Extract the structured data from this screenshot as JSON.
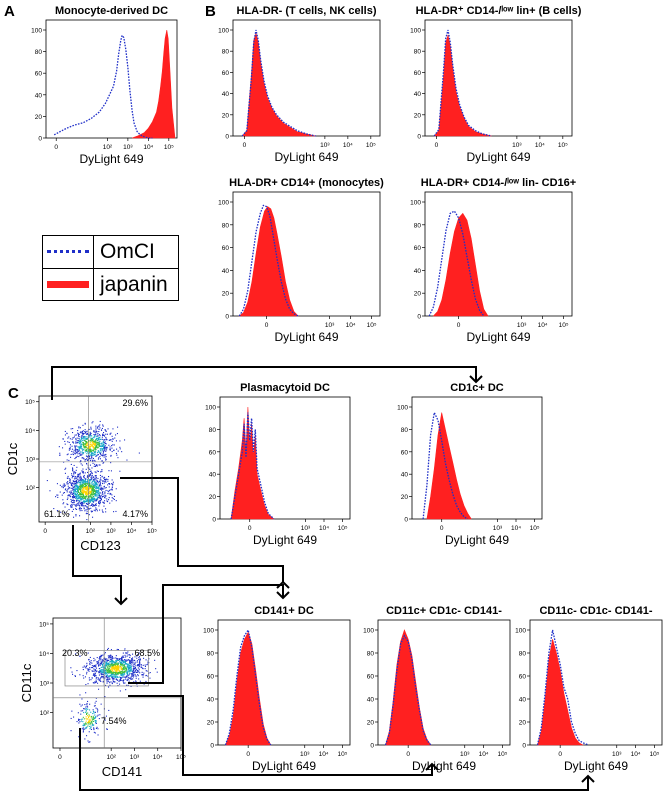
{
  "colors": {
    "omcl": "#1f2fc8",
    "japanin": "#ff2020",
    "arrow": "#000000"
  },
  "panel_labels": {
    "a": "A",
    "b": "B",
    "c": "C"
  },
  "legend": {
    "omcl": "OmCI",
    "japanin": "japanin"
  },
  "chart_data": [
    {
      "type": "area",
      "title": "Monocyte-derived DC",
      "xlabel": "DyLight 649",
      "xticks": [
        "0",
        "10²",
        "10³",
        "10⁴",
        "10⁵"
      ],
      "yticks": [
        "0",
        "20",
        "40",
        "60",
        "80",
        "100"
      ],
      "ylim": [
        0,
        100
      ],
      "series": [
        {
          "name": "OmCI",
          "x": [
            -0.6,
            -0.3,
            0,
            0.4,
            0.8,
            1.2,
            1.6,
            1.9,
            2.1,
            2.3,
            2.45,
            2.55,
            2.65,
            2.72,
            2.8,
            2.9,
            3.0,
            3.1,
            3.2,
            3.3,
            3.45,
            3.6,
            3.8,
            4.0,
            4.2
          ],
          "values": [
            3,
            6,
            9,
            12,
            14,
            18,
            24,
            32,
            40,
            48,
            62,
            78,
            90,
            95,
            93,
            82,
            65,
            44,
            26,
            14,
            6,
            3,
            1,
            0,
            0
          ]
        },
        {
          "name": "japanin",
          "x": [
            3.2,
            3.5,
            3.8,
            4.0,
            4.2,
            4.4,
            4.5,
            4.6,
            4.68,
            4.75,
            4.82,
            4.9,
            4.97,
            5.05,
            5.15,
            5.3
          ],
          "values": [
            0,
            2,
            5,
            9,
            15,
            24,
            34,
            48,
            62,
            78,
            92,
            100,
            92,
            65,
            28,
            0
          ]
        }
      ]
    },
    {
      "type": "area",
      "title": "HLA-DR-  (T cells, NK cells)",
      "xlabel": "DyLight 649",
      "xticks": [
        "0",
        "10³",
        "10⁴",
        "10⁵"
      ],
      "yticks": [
        "0",
        "20",
        "40",
        "60",
        "80",
        "100"
      ],
      "ylim": [
        0,
        100
      ],
      "series": [
        {
          "name": "OmCI",
          "x": [
            -0.6,
            -0.4,
            -0.2,
            -0.1,
            0,
            0.1,
            0.2,
            0.35,
            0.5,
            0.7,
            0.9,
            1.2,
            1.5,
            1.8,
            2.2,
            2.6
          ],
          "values": [
            0,
            5,
            55,
            88,
            100,
            90,
            72,
            52,
            38,
            27,
            20,
            13,
            9,
            5,
            2,
            0
          ]
        },
        {
          "name": "japanin",
          "x": [
            -0.6,
            -0.4,
            -0.2,
            -0.1,
            0,
            0.1,
            0.2,
            0.35,
            0.5,
            0.7,
            0.9,
            1.2,
            1.5,
            1.8,
            2.2,
            2.6
          ],
          "values": [
            0,
            5,
            58,
            90,
            97,
            88,
            70,
            50,
            36,
            26,
            19,
            12,
            8,
            4,
            2,
            0
          ]
        }
      ]
    },
    {
      "type": "area",
      "title": "HLA-DR⁺ CD14-/ˡᵒʷ lin+ (B cells)",
      "xlabel": "DyLight 649",
      "xticks": [
        "0",
        "10³",
        "10⁴",
        "10⁵"
      ],
      "yticks": [
        "0",
        "20",
        "40",
        "60",
        "80",
        "100"
      ],
      "ylim": [
        0,
        100
      ],
      "series": [
        {
          "name": "OmCI",
          "x": [
            -0.6,
            -0.4,
            -0.2,
            -0.1,
            0,
            0.1,
            0.2,
            0.35,
            0.5,
            0.7,
            0.9,
            1.2,
            1.5,
            1.9
          ],
          "values": [
            0,
            6,
            60,
            92,
            100,
            88,
            68,
            45,
            30,
            18,
            10,
            5,
            2,
            0
          ]
        },
        {
          "name": "japanin",
          "x": [
            -0.6,
            -0.4,
            -0.2,
            -0.1,
            0,
            0.1,
            0.2,
            0.35,
            0.5,
            0.7,
            0.9,
            1.2,
            1.5,
            1.9
          ],
          "values": [
            0,
            5,
            55,
            88,
            95,
            85,
            65,
            42,
            28,
            17,
            9,
            4,
            2,
            0
          ]
        }
      ]
    },
    {
      "type": "area",
      "title": "HLA-DR+ CD14+ (monocytes)",
      "xlabel": "DyLight 649",
      "xticks": [
        "0",
        "10³",
        "10⁴",
        "10⁵"
      ],
      "yticks": [
        "0",
        "20",
        "40",
        "60",
        "80",
        "100"
      ],
      "ylim": [
        0,
        100
      ],
      "series": [
        {
          "name": "OmCI",
          "x": [
            -1.3,
            -1.1,
            -0.9,
            -0.7,
            -0.5,
            -0.3,
            -0.15,
            0,
            0.15,
            0.3,
            0.5,
            0.7,
            0.9,
            1.1,
            1.3,
            1.5
          ],
          "values": [
            0,
            6,
            22,
            48,
            74,
            90,
            97,
            96,
            88,
            72,
            50,
            30,
            15,
            6,
            2,
            0
          ]
        },
        {
          "name": "japanin",
          "x": [
            -1.3,
            -1.1,
            -0.9,
            -0.7,
            -0.5,
            -0.3,
            -0.1,
            0.05,
            0.2,
            0.35,
            0.5,
            0.7,
            0.9,
            1.1,
            1.3,
            1.5
          ],
          "values": [
            0,
            3,
            12,
            30,
            55,
            78,
            92,
            96,
            94,
            86,
            72,
            52,
            30,
            14,
            4,
            0
          ]
        }
      ]
    },
    {
      "type": "area",
      "title": "HLA-DR+ CD14-/ˡᵒʷ lin- CD16+",
      "xlabel": "DyLight 649",
      "xticks": [
        "0",
        "10³",
        "10⁴",
        "10⁵"
      ],
      "yticks": [
        "0",
        "20",
        "40",
        "60",
        "80",
        "100"
      ],
      "ylim": [
        0,
        100
      ],
      "series": [
        {
          "name": "OmCI",
          "x": [
            -1.4,
            -1.2,
            -1.0,
            -0.8,
            -0.6,
            -0.4,
            -0.2,
            0,
            0.2,
            0.4,
            0.6,
            0.8,
            1.0,
            1.2
          ],
          "values": [
            0,
            8,
            25,
            50,
            75,
            90,
            92,
            86,
            72,
            52,
            32,
            15,
            5,
            0
          ]
        },
        {
          "name": "japanin",
          "x": [
            -1.2,
            -1.0,
            -0.8,
            -0.6,
            -0.4,
            -0.2,
            0,
            0.2,
            0.4,
            0.6,
            0.8,
            1.0,
            1.2,
            1.4
          ],
          "values": [
            0,
            4,
            14,
            32,
            55,
            74,
            86,
            90,
            84,
            68,
            45,
            22,
            6,
            0
          ]
        }
      ]
    },
    {
      "type": "scatter",
      "xlabel": "CD123",
      "ylabel": "CD1c",
      "xticks": [
        "0",
        "10²",
        "10³",
        "10⁴",
        "10⁵"
      ],
      "yticks": [
        "10²",
        "10³",
        "10⁴",
        "10⁵"
      ],
      "quadrants": [
        "29.6%",
        "61.1%",
        "4.17%"
      ],
      "populations": [
        {
          "name": "",
          "x": 1.8,
          "y": 1.9,
          "spread_x": 0.55,
          "spread_y": 0.35
        },
        {
          "name": "",
          "x": 2.0,
          "y": 3.5,
          "spread_x": 0.55,
          "spread_y": 0.3
        }
      ]
    },
    {
      "type": "area",
      "title": "Plasmacytoid DC",
      "xlabel": "DyLight 649",
      "xticks": [
        "0",
        "10³",
        "10⁴",
        "10⁵"
      ],
      "yticks": [
        "0",
        "20",
        "40",
        "60",
        "80",
        "100"
      ],
      "ylim": [
        0,
        100
      ],
      "series": [
        {
          "name": "OmCI",
          "x": [
            -1.0,
            -0.8,
            -0.6,
            -0.4,
            -0.3,
            -0.2,
            -0.1,
            0,
            0.1,
            0.2,
            0.3,
            0.4,
            0.6,
            0.8,
            1.0,
            1.3
          ],
          "values": [
            0,
            20,
            40,
            60,
            85,
            55,
            95,
            70,
            90,
            60,
            80,
            45,
            30,
            15,
            5,
            0
          ]
        },
        {
          "name": "japanin",
          "x": [
            -1.0,
            -0.8,
            -0.6,
            -0.4,
            -0.3,
            -0.2,
            -0.1,
            0,
            0.1,
            0.2,
            0.3,
            0.4,
            0.6,
            0.8,
            1.0,
            1.3
          ],
          "values": [
            0,
            25,
            45,
            70,
            90,
            60,
            100,
            65,
            85,
            55,
            75,
            40,
            25,
            12,
            4,
            0
          ]
        }
      ]
    },
    {
      "type": "area",
      "title": "CD1c+ DC",
      "xlabel": "DyLight 649",
      "xticks": [
        "0",
        "10³",
        "10⁴",
        "10⁵"
      ],
      "yticks": [
        "0",
        "20",
        "40",
        "60",
        "80",
        "100"
      ],
      "ylim": [
        0,
        100
      ],
      "series": [
        {
          "name": "OmCI",
          "x": [
            -1.0,
            -0.8,
            -0.6,
            -0.4,
            -0.2,
            0,
            0.2,
            0.4,
            0.6,
            0.8,
            1.0,
            1.2,
            1.4
          ],
          "values": [
            0,
            30,
            75,
            95,
            88,
            70,
            50,
            35,
            22,
            12,
            6,
            2,
            0
          ]
        },
        {
          "name": "japanin",
          "x": [
            -0.8,
            -0.6,
            -0.4,
            -0.2,
            0,
            0.2,
            0.4,
            0.6,
            0.8,
            1.0,
            1.2,
            1.4,
            1.6
          ],
          "values": [
            0,
            20,
            45,
            75,
            95,
            80,
            65,
            50,
            35,
            22,
            12,
            5,
            0
          ]
        }
      ]
    },
    {
      "type": "scatter",
      "xlabel": "CD141",
      "ylabel": "CD11c",
      "xticks": [
        "0",
        "10²",
        "10³",
        "10⁴",
        "10⁵"
      ],
      "yticks": [
        "10²",
        "10³",
        "10⁴",
        "10⁵"
      ],
      "quadrants": [
        "20.3%",
        "68.5%",
        "7.54%"
      ],
      "populations": [
        {
          "name": "",
          "x": 2.2,
          "y": 3.5,
          "spread_x": 0.6,
          "spread_y": 0.25
        },
        {
          "name": "",
          "x": 1.0,
          "y": 1.8,
          "spread_x": 0.3,
          "spread_y": 0.3
        }
      ]
    },
    {
      "type": "area",
      "title": "CD141+ DC",
      "xlabel": "DyLight 649",
      "xticks": [
        "0",
        "10³",
        "10⁴",
        "10⁵"
      ],
      "yticks": [
        "0",
        "20",
        "40",
        "60",
        "80",
        "100"
      ],
      "ylim": [
        0,
        100
      ],
      "series": [
        {
          "name": "OmCI",
          "x": [
            -1.2,
            -1.0,
            -0.8,
            -0.6,
            -0.4,
            -0.2,
            0,
            0.2,
            0.4,
            0.6,
            0.8,
            1.0,
            1.2
          ],
          "values": [
            0,
            10,
            30,
            60,
            85,
            95,
            100,
            85,
            60,
            35,
            15,
            5,
            0
          ]
        },
        {
          "name": "japanin",
          "x": [
            -1.2,
            -1.0,
            -0.8,
            -0.6,
            -0.4,
            -0.2,
            0,
            0.2,
            0.4,
            0.6,
            0.8,
            1.0,
            1.2
          ],
          "values": [
            0,
            8,
            25,
            55,
            80,
            92,
            98,
            88,
            65,
            40,
            18,
            6,
            0
          ]
        }
      ]
    },
    {
      "type": "area",
      "title": "CD11c+ CD1c- CD141-",
      "xlabel": "DyLight 649",
      "xticks": [
        "0",
        "10³",
        "10⁴",
        "10⁵"
      ],
      "yticks": [
        "0",
        "20",
        "40",
        "60",
        "80",
        "100"
      ],
      "ylim": [
        0,
        100
      ],
      "series": [
        {
          "name": "OmCI",
          "x": [
            -1.2,
            -1.0,
            -0.8,
            -0.6,
            -0.4,
            -0.2,
            0,
            0.2,
            0.4,
            0.6,
            0.8,
            1.0,
            1.2
          ],
          "values": [
            0,
            10,
            35,
            65,
            88,
            95,
            90,
            75,
            50,
            30,
            12,
            4,
            0
          ]
        },
        {
          "name": "japanin",
          "x": [
            -1.2,
            -1.0,
            -0.8,
            -0.6,
            -0.4,
            -0.2,
            0,
            0.2,
            0.4,
            0.6,
            0.8,
            1.0,
            1.2
          ],
          "values": [
            0,
            12,
            38,
            70,
            90,
            100,
            92,
            78,
            55,
            32,
            14,
            5,
            0
          ]
        }
      ]
    },
    {
      "type": "area",
      "title": "CD11c- CD1c- CD141-",
      "xlabel": "DyLight 649",
      "xticks": [
        "0",
        "10³",
        "10⁴",
        "10⁵"
      ],
      "yticks": [
        "0",
        "20",
        "40",
        "60",
        "80",
        "100"
      ],
      "ylim": [
        0,
        100
      ],
      "series": [
        {
          "name": "OmCI",
          "x": [
            -1.2,
            -1.0,
            -0.8,
            -0.6,
            -0.4,
            -0.2,
            0,
            0.2,
            0.4,
            0.6,
            0.8,
            1.0,
            1.2,
            1.5
          ],
          "values": [
            0,
            15,
            45,
            80,
            100,
            85,
            70,
            50,
            40,
            20,
            10,
            4,
            2,
            0
          ]
        },
        {
          "name": "japanin",
          "x": [
            -1.2,
            -1.0,
            -0.8,
            -0.6,
            -0.4,
            -0.2,
            0,
            0.2,
            0.4,
            0.6,
            0.8,
            1.0,
            1.2
          ],
          "values": [
            0,
            12,
            40,
            75,
            92,
            80,
            65,
            45,
            30,
            15,
            6,
            2,
            0
          ]
        }
      ]
    }
  ]
}
